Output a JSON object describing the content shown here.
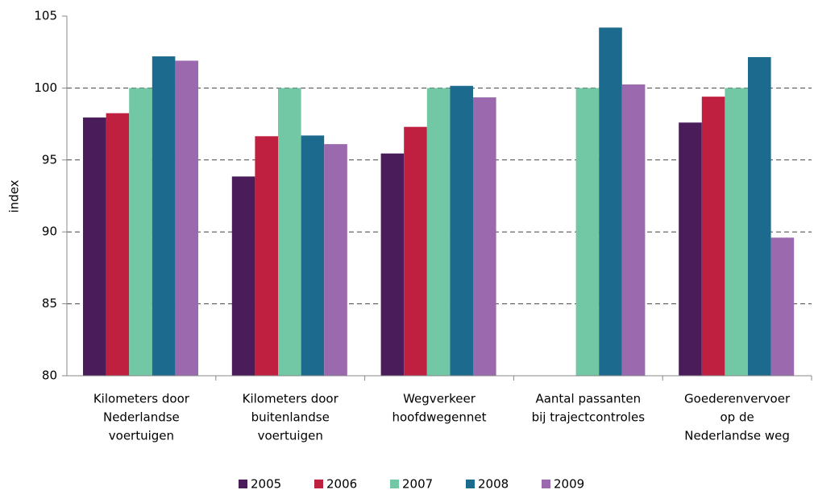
{
  "chart_data": {
    "type": "bar",
    "y_label": "index",
    "categories": [
      [
        "Kilometers door",
        "Nederlandse",
        "voertuigen"
      ],
      [
        "Kilometers door",
        "buitenlandse",
        "voertuigen"
      ],
      [
        "Wegverkeer",
        "hoofdwegennet"
      ],
      [
        "Aantal passanten",
        "bij trajectcontroles"
      ],
      [
        "Goederenvervoer",
        "op de",
        "Nederlandse weg"
      ]
    ],
    "series": [
      {
        "name": "2005",
        "color": "#4a1c5a",
        "values": [
          97.95,
          93.85,
          95.45,
          null,
          97.6
        ]
      },
      {
        "name": "2006",
        "color": "#c0203f",
        "values": [
          98.25,
          96.65,
          97.3,
          null,
          99.4
        ]
      },
      {
        "name": "2007",
        "color": "#72c8a4",
        "values": [
          100,
          100,
          100,
          100,
          100
        ]
      },
      {
        "name": "2008",
        "color": "#1c6b8f",
        "values": [
          102.2,
          96.7,
          100.15,
          104.2,
          102.15
        ]
      },
      {
        "name": "2009",
        "color": "#9b69ad",
        "values": [
          101.9,
          96.1,
          99.35,
          100.25,
          89.6
        ]
      }
    ],
    "ylim": [
      80,
      105
    ],
    "yticks": [
      80,
      85,
      90,
      95,
      100,
      105
    ],
    "grid": true
  }
}
